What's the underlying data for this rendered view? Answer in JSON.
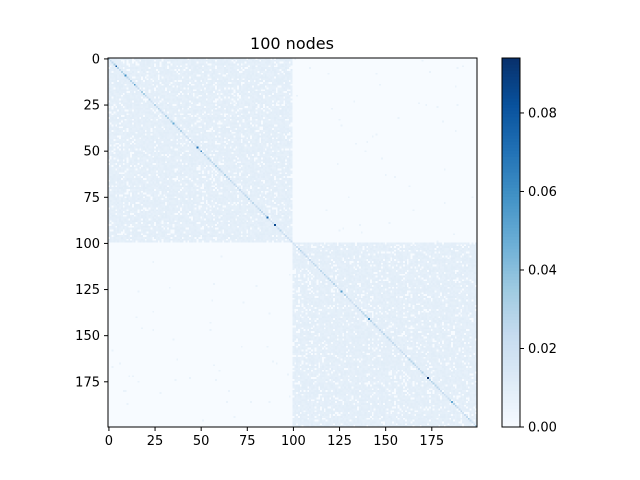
{
  "chart_data": {
    "type": "heatmap",
    "title": "100 nodes",
    "xlabel": "",
    "ylabel": "",
    "matrix_size": 200,
    "xlim": [
      -0.5,
      199.5
    ],
    "ylim": [
      199.5,
      -0.5
    ],
    "x_ticks": [
      0,
      25,
      50,
      75,
      100,
      125,
      150,
      175
    ],
    "y_ticks": [
      0,
      25,
      50,
      75,
      100,
      125,
      150,
      175
    ],
    "x_tick_labels": [
      "0",
      "25",
      "50",
      "75",
      "100",
      "125",
      "150",
      "175"
    ],
    "y_tick_labels": [
      "0",
      "25",
      "50",
      "75",
      "100",
      "125",
      "150",
      "175"
    ],
    "colormap": "Blues",
    "color_range": [
      0.0,
      0.094
    ],
    "colorbar_ticks": [
      0.0,
      0.02,
      0.04,
      0.06,
      0.08
    ],
    "colorbar_tick_labels": [
      "0.00",
      "0.02",
      "0.04",
      "0.06",
      "0.08"
    ],
    "blocks": [
      {
        "rows": [
          0,
          99
        ],
        "cols": [
          0,
          99
        ],
        "value": 0.009,
        "density": 0.88
      },
      {
        "rows": [
          100,
          199
        ],
        "cols": [
          100,
          199
        ],
        "value": 0.009,
        "density": 0.88
      },
      {
        "rows": [
          0,
          99
        ],
        "cols": [
          100,
          199
        ],
        "value": 0.0,
        "sparse_value": 0.006,
        "sparse_count": 45
      },
      {
        "rows": [
          100,
          199
        ],
        "cols": [
          0,
          99
        ],
        "value": 0.0,
        "sparse_value": 0.006,
        "sparse_count": 45
      }
    ],
    "diagonal_value": 0.025,
    "diagonal_peaks": [
      {
        "index": 4,
        "value": 0.08
      },
      {
        "index": 9,
        "value": 0.06
      },
      {
        "index": 14,
        "value": 0.055
      },
      {
        "index": 35,
        "value": 0.05
      },
      {
        "index": 48,
        "value": 0.07
      },
      {
        "index": 50,
        "value": 0.065
      },
      {
        "index": 86,
        "value": 0.075
      },
      {
        "index": 90,
        "value": 0.085
      },
      {
        "index": 126,
        "value": 0.055
      },
      {
        "index": 141,
        "value": 0.06
      },
      {
        "index": 173,
        "value": 0.094
      },
      {
        "index": 186,
        "value": 0.05
      }
    ]
  },
  "colors": {
    "cmap_low": "#f7fbff",
    "cmap_mid": "#deebf7",
    "cmap_high": "#08306b",
    "axis": "#000000",
    "background": "#ffffff"
  }
}
